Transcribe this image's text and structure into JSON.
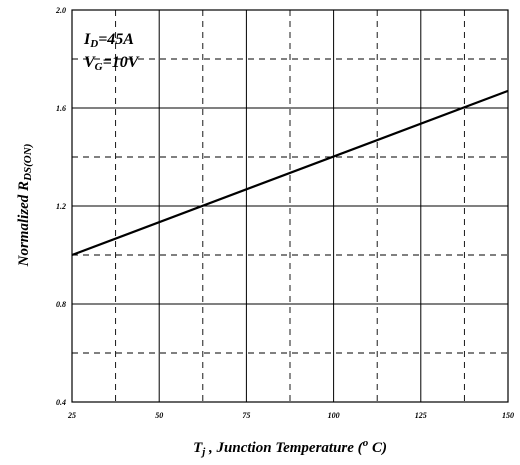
{
  "chart_data": {
    "type": "line",
    "xlabel": {
      "symbol": "T",
      "subscript": "j",
      "text": " , Junction Temperature (",
      "degree": "o",
      "unit": " C)"
    },
    "ylabel": {
      "text": "Normalized R",
      "subscript": "DS(ON)"
    },
    "xlim": [
      25,
      150
    ],
    "ylim": [
      0.4,
      2.0
    ],
    "x_ticks": [
      25,
      50,
      75,
      100,
      125,
      150
    ],
    "x_tick_labels": [
      "25",
      "50",
      "75",
      "100",
      "125",
      "150"
    ],
    "y_ticks": [
      0.4,
      0.8,
      1.2,
      1.6,
      2.0
    ],
    "y_tick_labels": [
      "0.4",
      "0.8",
      "1.2",
      "1.6",
      "2.0"
    ],
    "grid": {
      "solid_x": [
        50,
        75,
        100,
        125
      ],
      "dashed_x": [
        37.5,
        62.5,
        87.5,
        112.5,
        137.5
      ],
      "solid_y": [
        0.8,
        1.2,
        1.6
      ],
      "dashed_y": [
        0.6,
        1.0,
        1.4,
        1.8
      ]
    },
    "series": [
      {
        "x": [
          25,
          150
        ],
        "y": [
          1.0,
          1.67
        ]
      }
    ],
    "annotations": [
      {
        "symbol": "I",
        "subscript": "D",
        "text": "=45A"
      },
      {
        "symbol": "V",
        "subscript": "G",
        "text": "=10V"
      }
    ]
  }
}
